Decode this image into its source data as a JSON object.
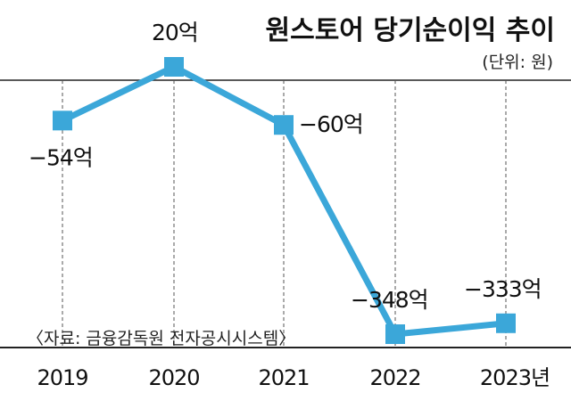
{
  "chart_data": {
    "type": "line",
    "title": "원스토어 당기순이익 추이",
    "unit_label": "(단위: 원)",
    "source": "〈자료: 금융감독원 전자공시시스템〉",
    "categories": [
      "2019",
      "2020",
      "2021",
      "2022",
      "2023년"
    ],
    "values": [
      -54,
      20,
      -60,
      -348,
      -333
    ],
    "data_labels": [
      "−54억",
      "20억",
      "−60억",
      "−348억",
      "−333억"
    ],
    "ylim": [
      -370,
      40
    ],
    "grid": "vertical-dashed",
    "colors": {
      "line": "#3ba7d9",
      "marker": "#3ba7d9",
      "text": "#111111",
      "grid": "#555555"
    }
  }
}
